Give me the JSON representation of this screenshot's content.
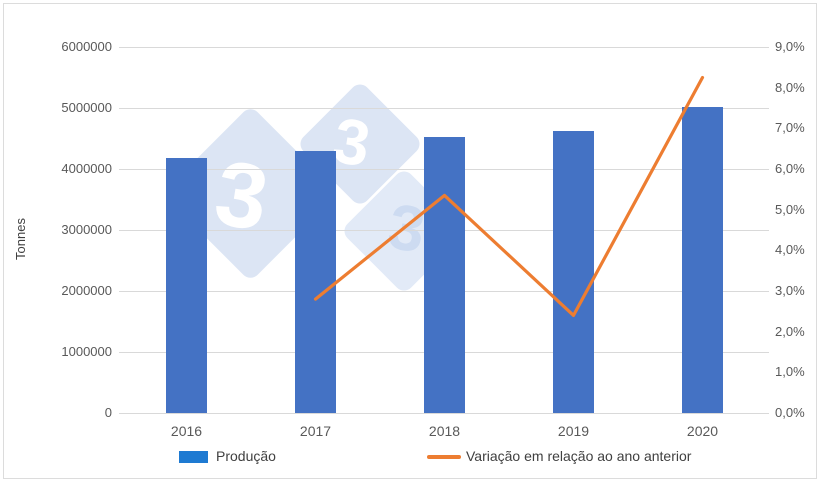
{
  "chart_data": {
    "type": "bar",
    "subtype": "combo-bar-line",
    "title": "",
    "categories": [
      "2016",
      "2017",
      "2018",
      "2019",
      "2020"
    ],
    "series": [
      {
        "name": "Produção",
        "type": "bar",
        "axis": "left",
        "unit": "tonnes",
        "color": "#4472C4",
        "values": [
          4180000,
          4300000,
          4520000,
          4630000,
          5020000
        ]
      },
      {
        "name": "Variação em relação ao ano anterior",
        "type": "line",
        "axis": "right",
        "unit": "percent",
        "color": "#ED7D31",
        "values": [
          null,
          2.8,
          5.35,
          2.4,
          8.25
        ]
      }
    ],
    "left_axis": {
      "title": "Tonnes",
      "min": 0,
      "max": 6000000,
      "step": 1000000,
      "tick_labels": [
        "0",
        "1000000",
        "2000000",
        "3000000",
        "4000000",
        "5000000",
        "6000000"
      ]
    },
    "right_axis": {
      "min": 0,
      "max": 9,
      "step": 1,
      "tick_labels": [
        "0,0%",
        "1,0%",
        "2,0%",
        "3,0%",
        "4,0%",
        "5,0%",
        "6,0%",
        "7,0%",
        "8,0%",
        "9,0%"
      ]
    },
    "grid": true,
    "legend_position": "bottom"
  },
  "watermark": {
    "glyph": "3"
  },
  "colors": {
    "border": "#dcdcdc",
    "grid": "#d9d9d9",
    "tick_text": "#595959",
    "legend_text": "#404040",
    "legend_bar_swatch": "#1E7AD2",
    "wm_diamond": "#dce5f4",
    "wm_diamond2": "#e2eaf7",
    "wm_glyph": "#ffffff",
    "wm_glyph_alt": "#cddbf1"
  }
}
